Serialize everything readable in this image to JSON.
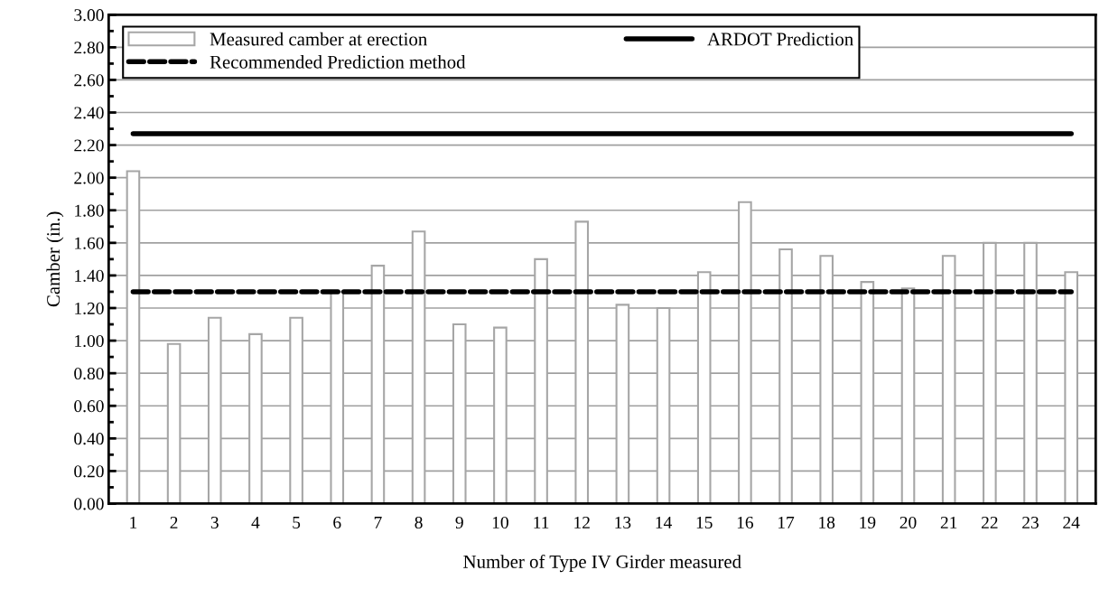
{
  "chart_data": {
    "type": "bar",
    "xlabel": "Number of Type IV Girder measured",
    "ylabel": "Camber (in.)",
    "categories": [
      "1",
      "2",
      "3",
      "4",
      "5",
      "6",
      "7",
      "8",
      "9",
      "10",
      "11",
      "12",
      "13",
      "14",
      "15",
      "16",
      "17",
      "18",
      "19",
      "20",
      "21",
      "22",
      "23",
      "24"
    ],
    "series": [
      {
        "name": "Measured camber at erection",
        "color": "#a6a6a6",
        "values": [
          2.04,
          0.98,
          1.14,
          1.04,
          1.14,
          1.3,
          1.46,
          1.67,
          1.1,
          1.08,
          1.5,
          1.73,
          1.22,
          1.2,
          1.42,
          1.85,
          1.56,
          1.52,
          1.36,
          1.32,
          1.52,
          1.6,
          1.6,
          1.42
        ]
      },
      {
        "name": "ARDOT Prediction",
        "type": "line",
        "line_style": "solid",
        "color": "#000000",
        "values": [
          2.27,
          2.27,
          2.27,
          2.27,
          2.27,
          2.27,
          2.27,
          2.27,
          2.27,
          2.27,
          2.27,
          2.27,
          2.27,
          2.27,
          2.27,
          2.27,
          2.27,
          2.27,
          2.27,
          2.27,
          2.27,
          2.27,
          2.27,
          2.27
        ]
      },
      {
        "name": "Recommended Prediction method",
        "type": "line",
        "line_style": "dashed",
        "color": "#000000",
        "values": [
          1.3,
          1.3,
          1.3,
          1.3,
          1.3,
          1.3,
          1.3,
          1.3,
          1.3,
          1.3,
          1.3,
          1.3,
          1.3,
          1.3,
          1.3,
          1.3,
          1.3,
          1.3,
          1.3,
          1.3,
          1.3,
          1.3,
          1.3,
          1.3
        ]
      }
    ],
    "ylim": [
      0,
      3
    ],
    "yticks": [
      {
        "value": 0,
        "label": "0.00"
      },
      {
        "value": 0.2,
        "label": "0.20"
      },
      {
        "value": 0.4,
        "label": "0.40"
      },
      {
        "value": 0.6,
        "label": "0.60"
      },
      {
        "value": 0.8,
        "label": "0.80"
      },
      {
        "value": 1.0,
        "label": "1.00"
      },
      {
        "value": 1.2,
        "label": "1.20"
      },
      {
        "value": 1.4,
        "label": "1.40"
      },
      {
        "value": 1.6,
        "label": "1.60"
      },
      {
        "value": 1.8,
        "label": "1.80"
      },
      {
        "value": 2.0,
        "label": "2.00"
      },
      {
        "value": 2.2,
        "label": "2.20"
      },
      {
        "value": 2.4,
        "label": "2.40"
      },
      {
        "value": 2.6,
        "label": "2.60"
      },
      {
        "value": 2.8,
        "label": "2.80"
      },
      {
        "value": 3.0,
        "label": "3.00"
      }
    ],
    "grid": "y",
    "legend": "top",
    "marker": "none"
  }
}
